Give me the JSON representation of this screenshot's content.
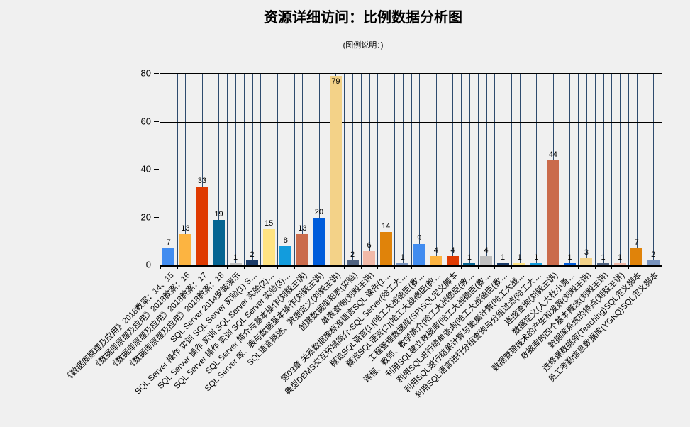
{
  "title": "资源详细访问：比例数据分析图",
  "subtitle": "(图例说明：)",
  "colors": {
    "background": "#f0f0f0",
    "vertical_grid": "#2e4b6e",
    "horizontal_grid": "#000000",
    "axis": "#000000",
    "text": "#000000"
  },
  "chart_data": {
    "type": "bar",
    "title": "资源详细访问：比例数据分析图",
    "subtitle": "(图例说明：)",
    "legend": "none",
    "grid": "horizontal major lines + dense vertical navy lines every half category",
    "ylim": [
      0,
      80
    ],
    "yticks": [
      0,
      20,
      40,
      60,
      80
    ],
    "categories": [
      "《数据库原理及应用》2018教案：14、15",
      "《数据库原理及应用》2018教案：16",
      "《数据库原理及应用》2018教案：17",
      "《数据库原理及应用》2018教案：18",
      "SQL Server 2014安装演示",
      "SQL Server 操作 实训 SQL Server 实验(1) S…",
      "SQL Server 操作 实训 SQL Server 实验(2)…",
      "SQL Server 操作 实训 SQL Server 实验(3)…",
      "SQL Server 简介与基本操作(刘毅主讲)",
      "SQL Server 库、表与数据基本操作(刘毅主讲)",
      "SQL语言概述、数据定义(刘毅主讲)",
      "创建数据库和表(实验)",
      "单表查询(刘毅主讲)",
      "第03章 关系数据库标准语言SQL 课件(1…",
      "典型DBMS交互环境简介-SQL Server(哈工大…",
      "概览SQL语言(1)(哈工大战德臣(教…",
      "概览SQL语言(2)(哈工大战德臣(教…",
      "工程管理数据库(SP)SQL定义脚本",
      "课程、教师、教学简介(哈工大战德臣(教…",
      "利用SQL建立数据库(哈工大战德臣(教…",
      "利用SQL进行简单查询(哈工大战德臣(教…",
      "利用SQL进行结果计算与聚集计算(哈工大战…",
      "利用SQL语言进行分组查询与分组过滤(哈工大…",
      "连接查询(刘毅主讲)",
      "数据定义(人大杜小勇…",
      "数据管理技术的产生和发展(刘毅主讲)",
      "数据库的四个基本概念(刘毅主讲)",
      "数据库系统的特点(刘毅主讲)",
      "选修课数据库(Teaching)SQL定义脚本",
      "员工考勤信息数据库(YGKQ)SQL定义脚本"
    ],
    "values": [
      7,
      13,
      33,
      19,
      1,
      2,
      15,
      8,
      13,
      20,
      79,
      2,
      6,
      14,
      1,
      9,
      4,
      4,
      1,
      4,
      1,
      1,
      1,
      44,
      1,
      3,
      1,
      1,
      7,
      2
    ],
    "palette": [
      "#418CF0",
      "#FCB441",
      "#DF3A01",
      "#056492",
      "#BFBFBF",
      "#1A3B69",
      "#FFE382",
      "#129CDD",
      "#CA6B4B",
      "#005CDB",
      "#F3D288",
      "#506381",
      "#F1B9A8",
      "#E0830A",
      "#7893BE"
    ]
  }
}
